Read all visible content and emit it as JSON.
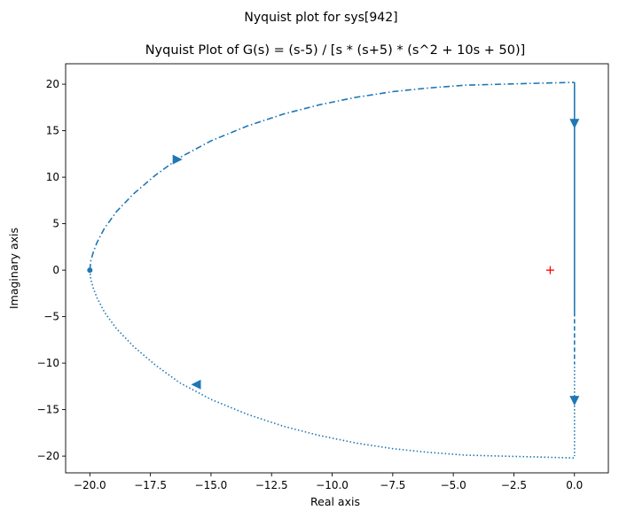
{
  "chart_data": {
    "type": "line",
    "suptitle": "Nyquist plot for sys[942]",
    "title": "Nyquist Plot of G(s) = (s-5) / [s * (s+5) * (s^2 + 10s + 50)]",
    "xlabel": "Real axis",
    "ylabel": "Imaginary axis",
    "xlim": [
      -21.0,
      1.4
    ],
    "ylim": [
      -21.8,
      22.2
    ],
    "xticks": [
      -20.0,
      -17.5,
      -15.0,
      -12.5,
      -10.0,
      -7.5,
      -5.0,
      -2.5,
      0.0
    ],
    "xtick_labels": [
      "−20.0",
      "−17.5",
      "−15.0",
      "−12.5",
      "−10.0",
      "−7.5",
      "−5.0",
      "−2.5",
      "0.0"
    ],
    "yticks": [
      -20,
      -15,
      -10,
      -5,
      0,
      5,
      10,
      15,
      20
    ],
    "ytick_labels": [
      "−20",
      "−15",
      "−10",
      "−5",
      "0",
      "5",
      "10",
      "15",
      "20"
    ],
    "grid": false,
    "colors": {
      "curve": "#1f77b4",
      "critical_point": "#ff0000"
    },
    "series": [
      {
        "style": "dash-dot",
        "x": [
          -20.0,
          -19.96,
          -19.85,
          -19.7,
          -19.4,
          -18.9,
          -18.2,
          -17.3,
          -16.3,
          -15.0,
          -13.5,
          -12.0,
          -10.5,
          -9.0,
          -7.5,
          -6.0,
          -4.5,
          -3.0,
          -1.5,
          0.0
        ],
        "y": [
          0.0,
          1.0,
          2.0,
          3.0,
          4.5,
          6.3,
          8.2,
          10.2,
          12.1,
          13.9,
          15.5,
          16.8,
          17.8,
          18.6,
          19.2,
          19.6,
          19.9,
          20.0,
          20.1,
          20.2
        ]
      },
      {
        "style": "dotted",
        "x": [
          -20.0,
          -19.96,
          -19.85,
          -19.7,
          -19.4,
          -18.9,
          -18.2,
          -17.3,
          -16.3,
          -15.0,
          -13.5,
          -12.0,
          -10.5,
          -9.0,
          -7.5,
          -6.0,
          -4.5,
          -3.0,
          -1.5,
          0.0
        ],
        "y": [
          0.0,
          -1.0,
          -2.0,
          -3.0,
          -4.5,
          -6.3,
          -8.2,
          -10.2,
          -12.1,
          -13.9,
          -15.5,
          -16.8,
          -17.8,
          -18.6,
          -19.2,
          -19.6,
          -19.9,
          -20.0,
          -20.1,
          -20.2
        ]
      },
      {
        "style": "solid",
        "x": [
          0.0,
          0.0
        ],
        "y": [
          20.2,
          -4.5
        ]
      },
      {
        "style": "dashed",
        "x": [
          0.0,
          0.0
        ],
        "y": [
          -4.5,
          -10.0
        ]
      },
      {
        "style": "dotted",
        "x": [
          0.0,
          0.0
        ],
        "y": [
          -10.0,
          -20.0
        ]
      }
    ],
    "arrows": [
      {
        "x": -16.4,
        "y": 11.9,
        "direction": "right"
      },
      {
        "x": 0.0,
        "y": 15.8,
        "direction": "down"
      },
      {
        "x": -15.6,
        "y": -12.3,
        "direction": "left"
      },
      {
        "x": 0.0,
        "y": -14.0,
        "direction": "down"
      }
    ],
    "start_point": {
      "x": -20.0,
      "y": 0.0
    },
    "critical_point": {
      "x": -1.0,
      "y": 0.0,
      "marker": "+"
    }
  }
}
